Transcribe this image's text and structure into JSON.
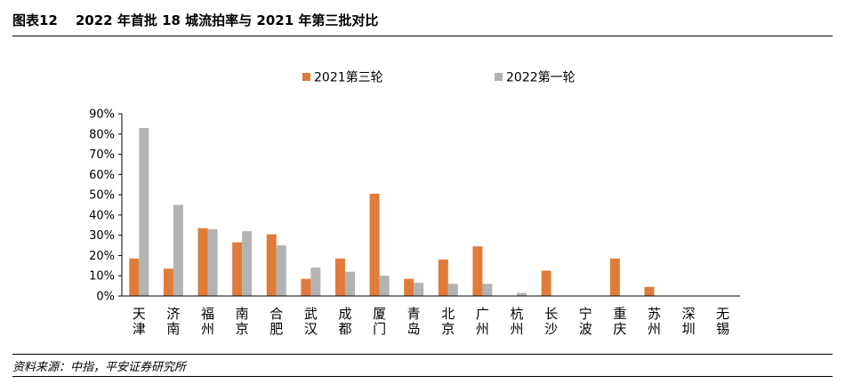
{
  "header": {
    "figure_label": "图表12",
    "title": "2022 年首批 18 城流拍率与 2021 年第三批对比"
  },
  "footer": {
    "source": "资料来源：中指，平安证券研究所"
  },
  "chart_data": {
    "type": "bar",
    "categories": [
      "天津",
      "济南",
      "福州",
      "南京",
      "合肥",
      "武汉",
      "成都",
      "厦门",
      "青岛",
      "北京",
      "广州",
      "杭州",
      "长沙",
      "宁波",
      "重庆",
      "苏州",
      "深圳",
      "无锡"
    ],
    "series": [
      {
        "name": "2021第三轮",
        "color": "#E07B39",
        "values": [
          18.5,
          13.5,
          33.5,
          26.5,
          30.5,
          8.5,
          18.5,
          50.5,
          8.5,
          18,
          24.5,
          0,
          12.5,
          0,
          18.5,
          4.5,
          0,
          0
        ]
      },
      {
        "name": "2022第一轮",
        "color": "#B3B3B3",
        "values": [
          83,
          45,
          33,
          32,
          25,
          14,
          12,
          10,
          6.5,
          6,
          6,
          1.5,
          0,
          0,
          0,
          0,
          0,
          0
        ]
      }
    ],
    "ylim": [
      0,
      90
    ],
    "yticks": [
      "0%",
      "10%",
      "20%",
      "30%",
      "40%",
      "50%",
      "60%",
      "70%",
      "80%",
      "90%"
    ],
    "legend_position": "top-center",
    "grid": false
  }
}
